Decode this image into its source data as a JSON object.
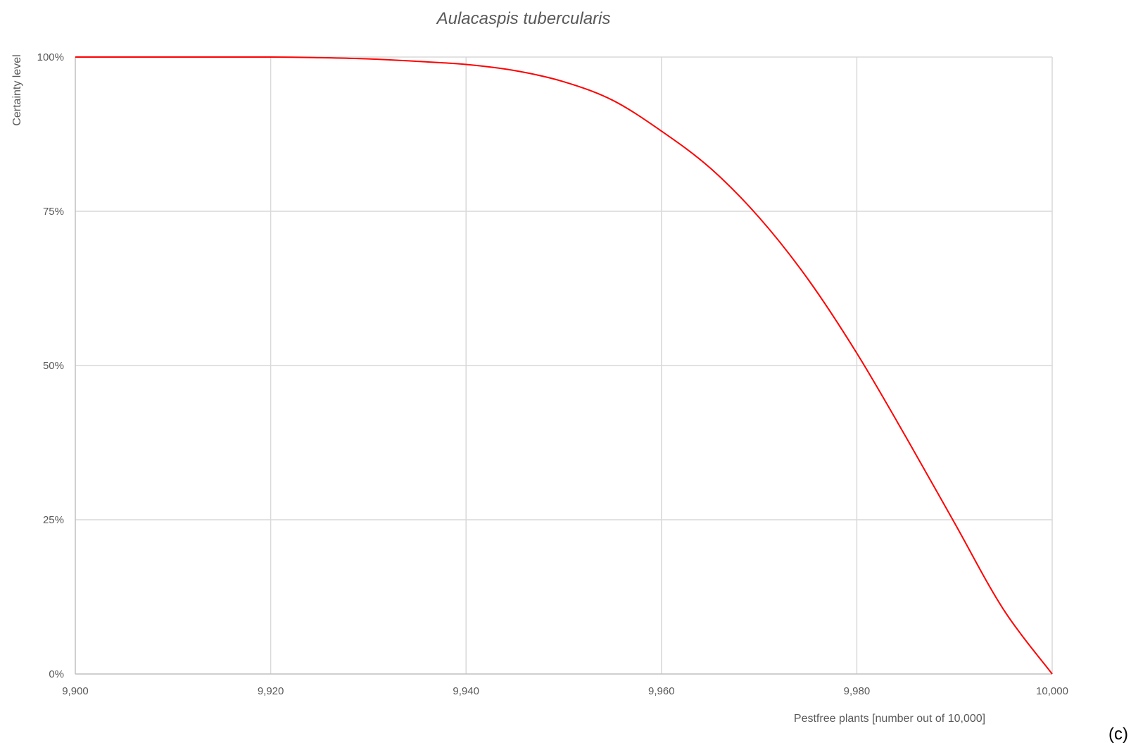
{
  "chart_data": {
    "type": "line",
    "title": "Aulacaspis tubercularis",
    "xlabel": "Pestfree plants [number out of 10,000]",
    "ylabel": "Certainty level",
    "panel_label": "(c)",
    "xlim": [
      9900,
      10000
    ],
    "ylim": [
      0,
      100
    ],
    "grid": true,
    "x_ticks": [
      9900,
      9920,
      9940,
      9960,
      9980,
      10000
    ],
    "x_tick_labels": [
      "9,900",
      "9,920",
      "9,940",
      "9,960",
      "9,980",
      "10,000"
    ],
    "y_ticks": [
      0,
      25,
      50,
      75,
      100
    ],
    "y_tick_labels": [
      "0%",
      "25%",
      "50%",
      "75%",
      "100%"
    ],
    "series": [
      {
        "color": "#ff0000",
        "x": [
          9900,
          9910,
          9920,
          9925,
          9930,
          9935,
          9940,
          9945,
          9950,
          9955,
          9960,
          9965,
          9970,
          9975,
          9980,
          9985,
          9990,
          9995,
          10000
        ],
        "y": [
          100,
          100,
          100,
          99.9,
          99.7,
          99.3,
          98.8,
          97.8,
          96.0,
          93.0,
          88.0,
          82.0,
          74.0,
          64.0,
          52.0,
          38.5,
          24.5,
          10.5,
          0
        ]
      }
    ]
  }
}
